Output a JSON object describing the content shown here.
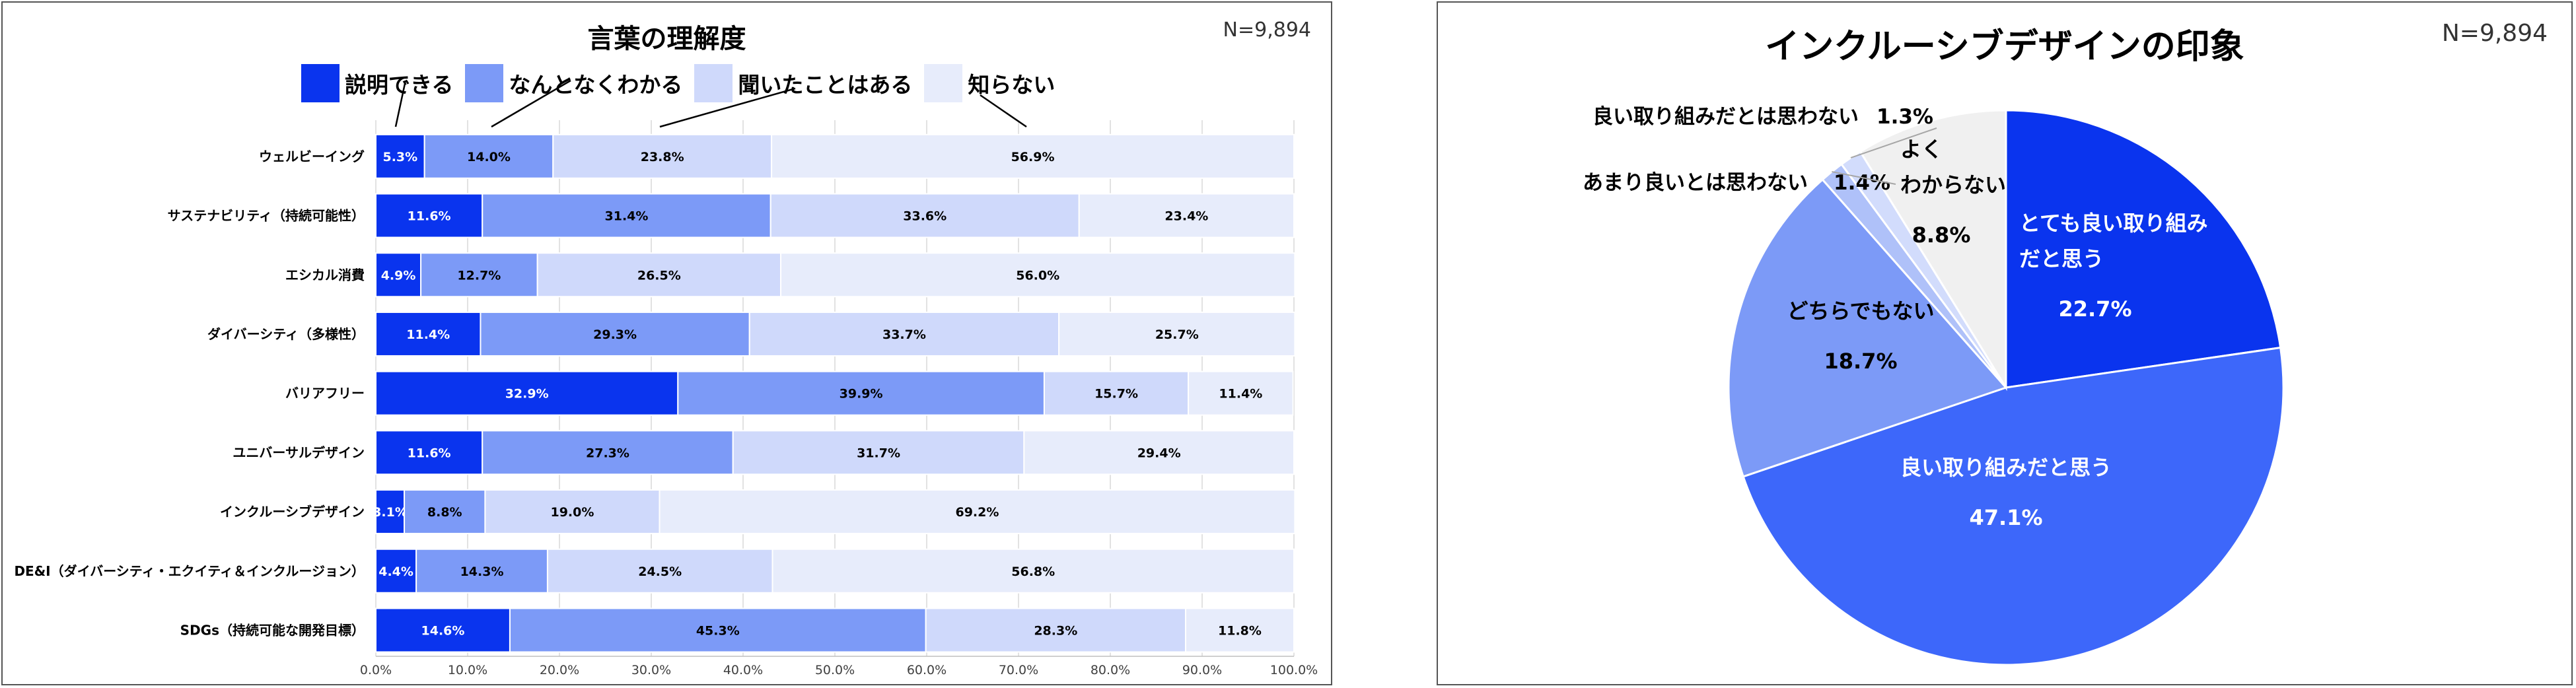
{
  "left": {
    "title": "言葉の理解度",
    "n_label": "N=9,894"
  },
  "right": {
    "title": "インクルーシブデザインの印象",
    "n_label": "N=9,894"
  },
  "colors": {
    "c1": "#0a34ee",
    "c2": "#7c9af7",
    "c3": "#cfd9fb",
    "c4": "#e7ecfb"
  },
  "chart_data": [
    {
      "type": "bar",
      "stacked": true,
      "orientation": "horizontal",
      "title": "言葉の理解度",
      "categories": [
        "ウェルビーイング",
        "サステナビリティ（持続可能性）",
        "エシカル消費",
        "ダイバーシティ（多様性）",
        "バリアフリー",
        "ユニバーサルデザイン",
        "インクルーシブデザイン",
        "DE&I（ダイバーシティ・エクイティ＆インクルージョン）",
        "SDGs（持続可能な開発目標）"
      ],
      "series": [
        {
          "name": "説明できる",
          "color": "#0a34ee",
          "values": [
            5.3,
            11.6,
            4.9,
            11.4,
            32.9,
            11.6,
            3.1,
            4.4,
            14.6
          ]
        },
        {
          "name": "なんとなくわかる",
          "color": "#7c9af7",
          "values": [
            14.0,
            31.4,
            12.7,
            29.3,
            39.9,
            27.3,
            8.8,
            14.3,
            45.3
          ]
        },
        {
          "name": "聞いたことはある",
          "color": "#cfd9fb",
          "values": [
            23.8,
            33.6,
            26.5,
            33.7,
            15.7,
            31.7,
            19.0,
            24.5,
            28.3
          ]
        },
        {
          "name": "知らない",
          "color": "#e7ecfb",
          "values": [
            56.9,
            23.4,
            56.0,
            25.7,
            11.4,
            29.4,
            69.2,
            56.8,
            11.8
          ]
        }
      ],
      "xticks": [
        "0.0%",
        "10.0%",
        "20.0%",
        "30.0%",
        "40.0%",
        "50.0%",
        "60.0%",
        "70.0%",
        "80.0%",
        "90.0%",
        "100.0%"
      ],
      "xlim": [
        0,
        100
      ],
      "grid": true,
      "legend": "top"
    },
    {
      "type": "pie",
      "title": "インクルーシブデザインの印象",
      "slices": [
        {
          "label": "とても良い取り組みだと思う",
          "value": 22.7,
          "display": "22.7%",
          "color": "#0a34ee",
          "lines": [
            "とても良い取り組み",
            "だと思う"
          ]
        },
        {
          "label": "良い取り組みだと思う",
          "value": 47.1,
          "display": "47.1%",
          "color": "#3d67fa",
          "lines": [
            "良い取り組みだと思う"
          ]
        },
        {
          "label": "どちらでもない",
          "value": 18.7,
          "display": "18.7%",
          "color": "#7c9af7",
          "lines": [
            "どちらでもない"
          ]
        },
        {
          "label": "あまり良いとは思わない",
          "value": 1.4,
          "display": "1.4%",
          "color": "#afc1f9",
          "lines": [
            "あまり良いとは思わない"
          ]
        },
        {
          "label": "良い取り組みだとは思わない",
          "value": 1.3,
          "display": "1.3%",
          "color": "#d2dcfc",
          "lines": [
            "良い取り組みだとは思わない"
          ]
        },
        {
          "label": "よくわからない",
          "value": 8.8,
          "display": "8.8%",
          "color": "#f0f0f0",
          "lines": [
            "よく",
            "わからない"
          ]
        }
      ]
    }
  ]
}
